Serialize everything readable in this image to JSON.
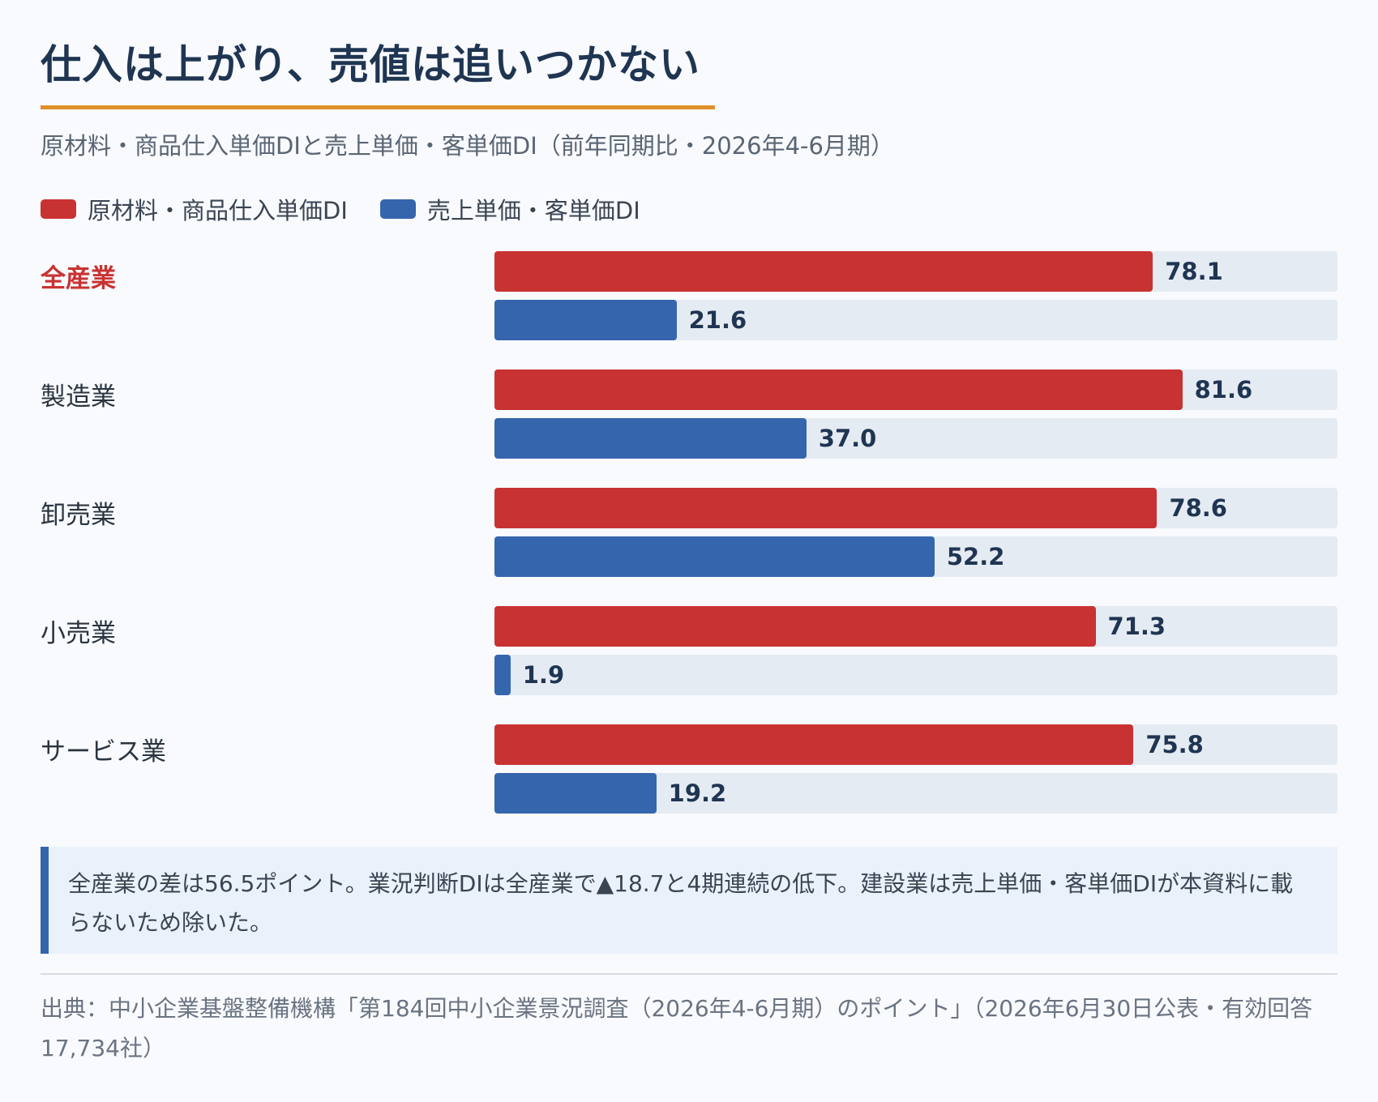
{
  "header": {
    "title": "仕入は上がり、売値は追いつかない",
    "subtitle": "原材料・商品仕入単価DIと売上単価・客単価DI（前年同期比・2026年4-6月期）"
  },
  "colors": {
    "purchase": "#c93232",
    "sales": "#3565ad",
    "accent": "#e0902c"
  },
  "chart_data": {
    "type": "bar",
    "orientation": "horizontal",
    "title": "仕入は上がり、売値は追いつかない",
    "subtitle": "原材料・商品仕入単価DIと売上単価・客単価DI（前年同期比・2026年4-6月期）",
    "categories": [
      "全産業",
      "製造業",
      "卸売業",
      "小売業",
      "サービス業"
    ],
    "highlight_category": "全産業",
    "series": [
      {
        "name": "原材料・商品仕入単価DI",
        "color": "#c93232",
        "values": [
          78.1,
          81.6,
          78.6,
          71.3,
          75.8
        ]
      },
      {
        "name": "売上単価・客単価DI",
        "color": "#3565ad",
        "values": [
          21.6,
          37.0,
          52.2,
          1.9,
          19.2
        ]
      }
    ],
    "xlim": [
      0,
      100
    ],
    "legend": "top-left",
    "grid": false
  },
  "note": "全産業の差は56.5ポイント。業況判断DIは全産業で▲18.7と4期連続の低下。建設業は売上単価・客単価DIが本資料に載らないため除いた。",
  "source": "出典：中小企業基盤整備機構「第184回中小企業景況調査（2026年4-6月期）のポイント」（2026年6月30日公表・有効回答17,734社）"
}
